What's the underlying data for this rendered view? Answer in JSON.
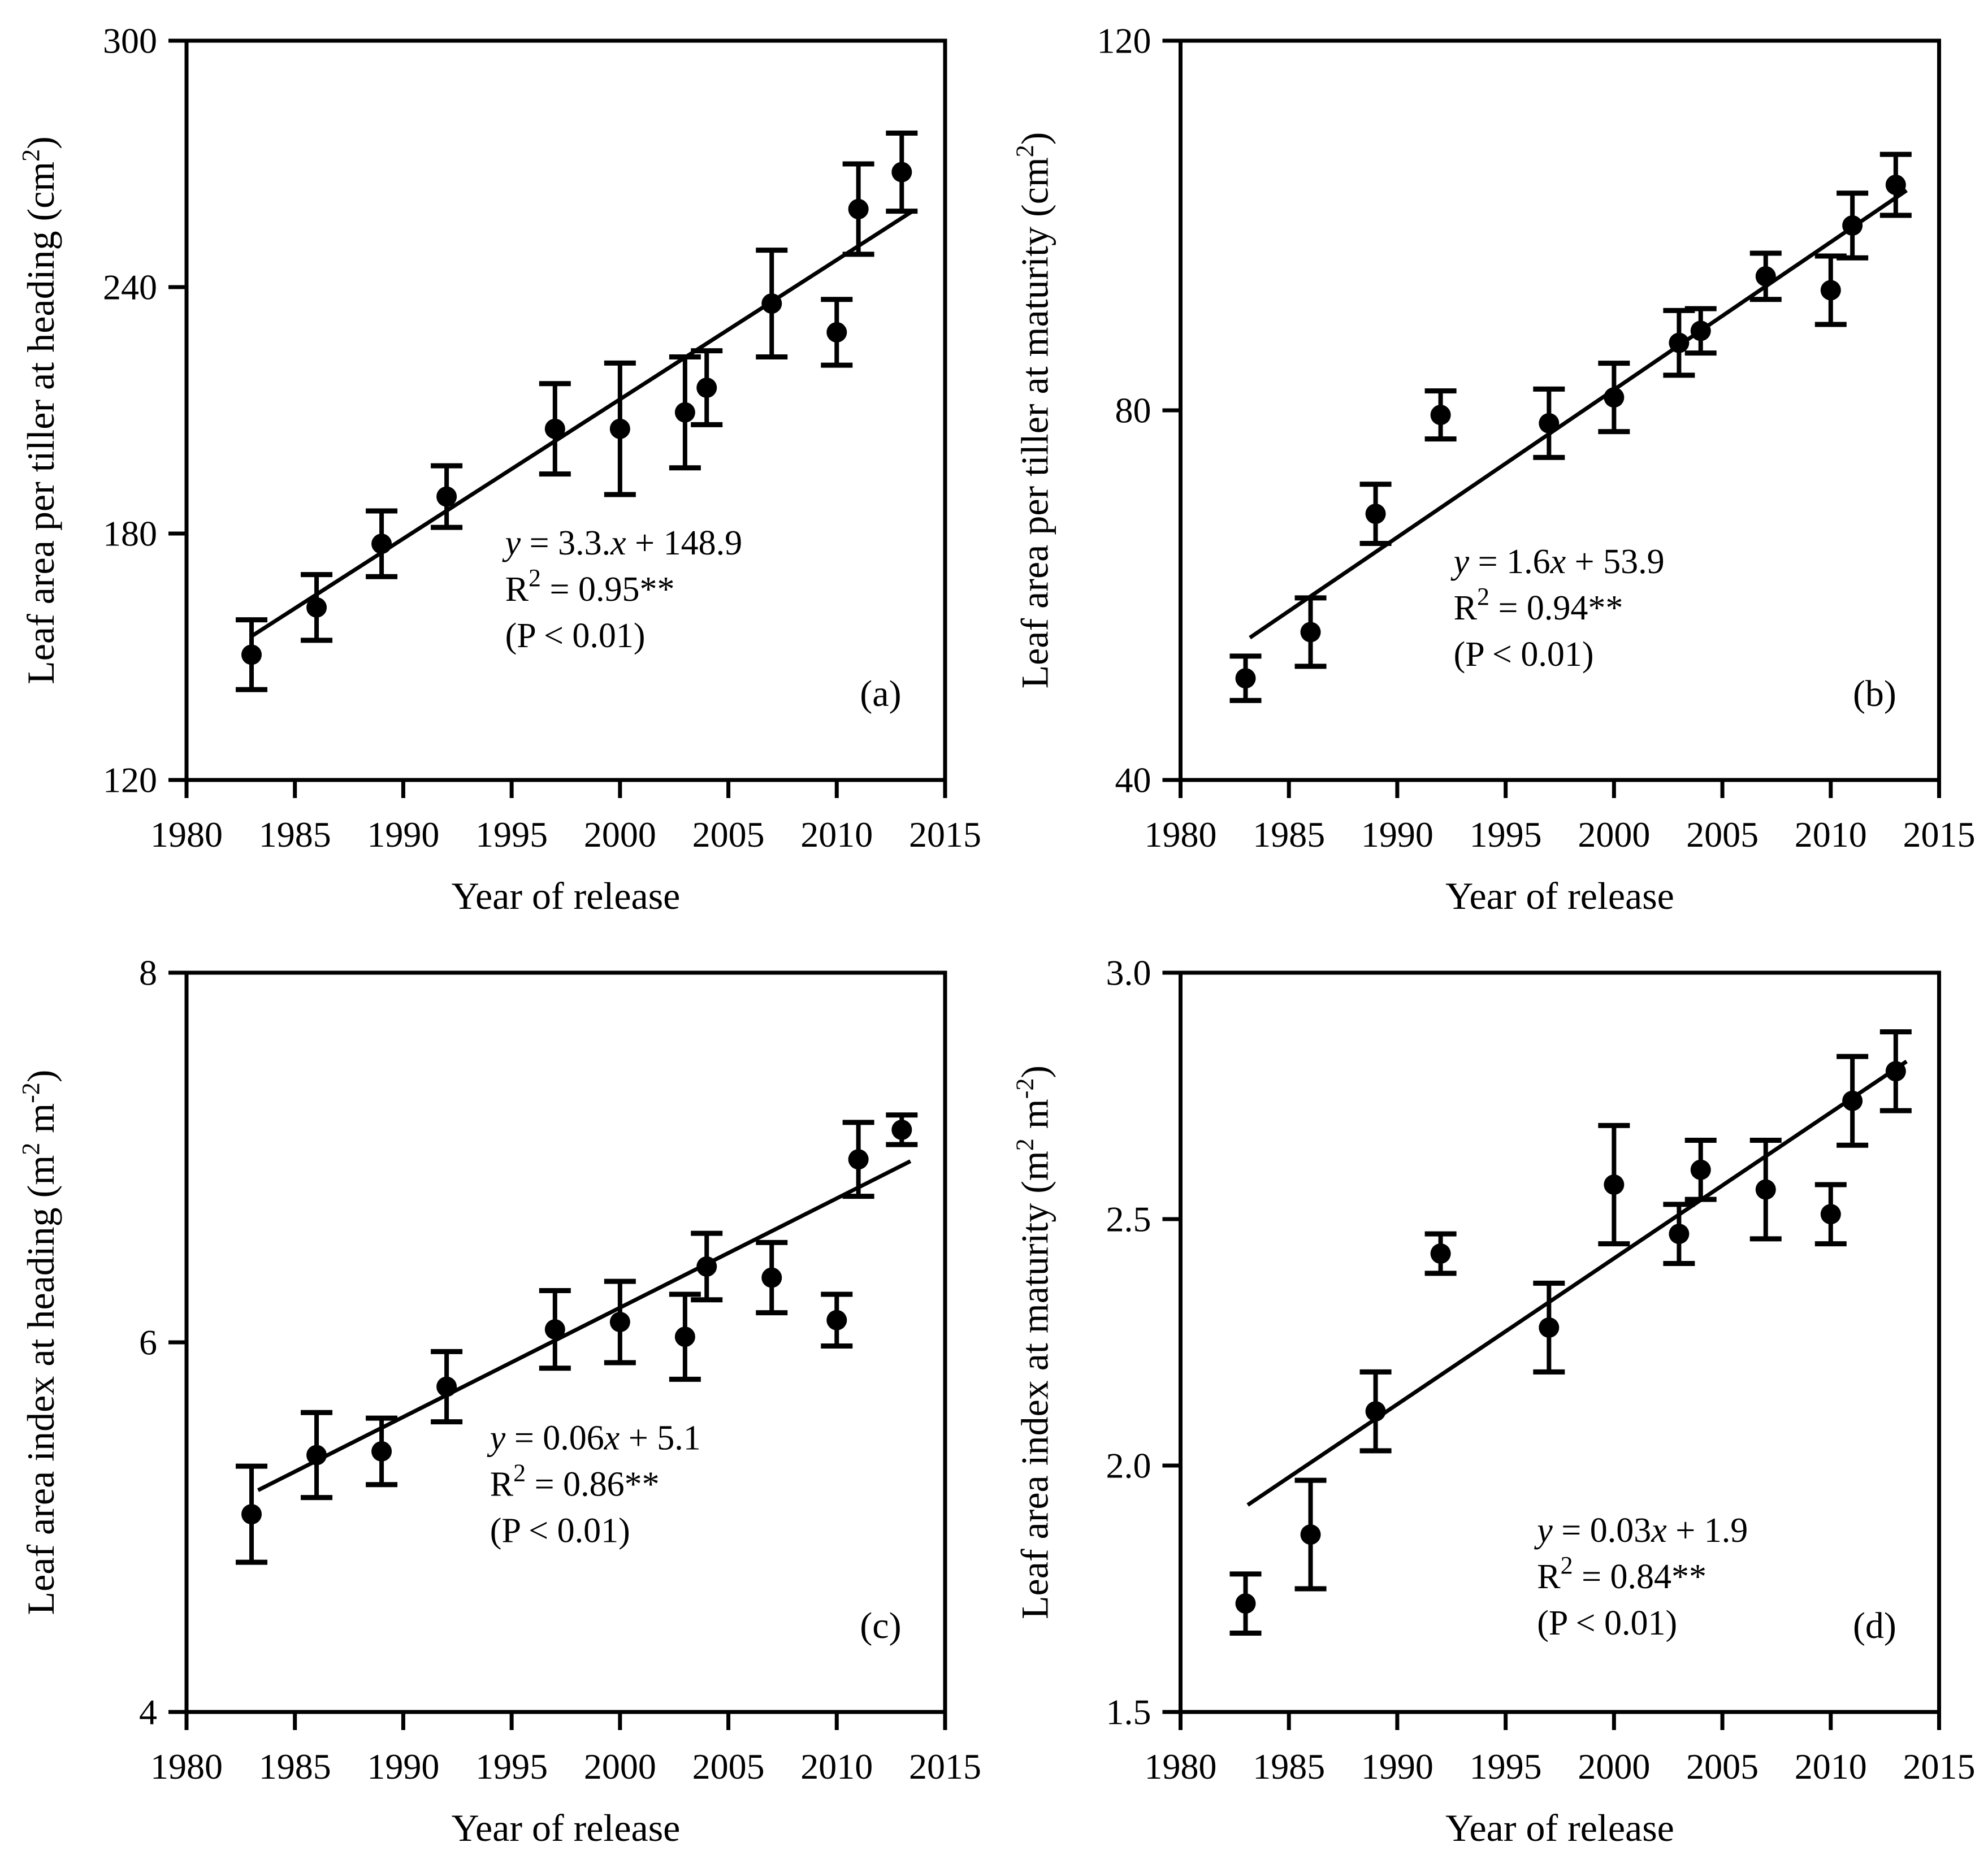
{
  "figure": {
    "background": "#ffffff",
    "ink_color": "#000000",
    "xlabel": "Year of release"
  },
  "chart_data": [
    {
      "type": "scatter",
      "panel_label": "(a)",
      "xlabel": "Year of release",
      "ylabel": "Leaf area per tiller at heading (cm2)",
      "ylabel_segments": [
        {
          "t": "Leaf area per tiller at heading (cm"
        },
        {
          "t": "2",
          "sup": true
        },
        {
          "t": ")"
        }
      ],
      "xlim": [
        1980,
        2015
      ],
      "ylim": [
        120,
        300
      ],
      "xticks": [
        {
          "v": 1980,
          "label": "1980"
        },
        {
          "v": 1985,
          "label": "1985"
        },
        {
          "v": 1990,
          "label": "1990"
        },
        {
          "v": 1995,
          "label": "1995"
        },
        {
          "v": 2000,
          "label": "2000"
        },
        {
          "v": 2005,
          "label": "2005"
        },
        {
          "v": 2010,
          "label": "2010"
        },
        {
          "v": 2015,
          "label": "2015"
        }
      ],
      "yticks": [
        {
          "v": 120,
          "label": "120"
        },
        {
          "v": 180,
          "label": "180"
        },
        {
          "v": 240,
          "label": "240"
        },
        {
          "v": 300,
          "label": "300"
        }
      ],
      "points": [
        {
          "x": 1983,
          "y": 150.5,
          "err": 8.5
        },
        {
          "x": 1986,
          "y": 162,
          "err": 8
        },
        {
          "x": 1989,
          "y": 177.5,
          "err": 8
        },
        {
          "x": 1992,
          "y": 189,
          "err": 7.5
        },
        {
          "x": 1997,
          "y": 205.5,
          "err": 11
        },
        {
          "x": 2000,
          "y": 205.5,
          "err": 16
        },
        {
          "x": 2003,
          "y": 209.5,
          "err": 13.5
        },
        {
          "x": 2004,
          "y": 215.5,
          "err": 9
        },
        {
          "x": 2007,
          "y": 236,
          "err": 13
        },
        {
          "x": 2010,
          "y": 229,
          "err": 8
        },
        {
          "x": 2011,
          "y": 259,
          "err": 11
        },
        {
          "x": 2013,
          "y": 268,
          "err": 9.5
        }
      ],
      "trend_line": {
        "x1": 1983,
        "y1": 155,
        "x2": 2013.5,
        "y2": 258.5
      },
      "equation_text": [
        "y = 3.3.x + 148.9",
        "R2 = 0.95**",
        "(P < 0.01)"
      ],
      "equation_lines": [
        [
          {
            "t": "y",
            "i": true
          },
          {
            "t": " = 3.3."
          },
          {
            "t": "x",
            "i": true
          },
          {
            "t": " + 148.9"
          }
        ],
        [
          {
            "t": "R"
          },
          {
            "t": "2",
            "sup": true
          },
          {
            "t": " = 0.95**"
          }
        ],
        [
          {
            "t": "(P < 0.01)"
          }
        ]
      ],
      "equation_pos": [
        0.42,
        0.695
      ]
    },
    {
      "type": "scatter",
      "panel_label": "(b)",
      "xlabel": "Year of release",
      "ylabel": "Leaf area per tiller at maturity (cm2)",
      "ylabel_segments": [
        {
          "t": "Leaf area per tiller at maturity (cm"
        },
        {
          "t": "2",
          "sup": true
        },
        {
          "t": ")"
        }
      ],
      "xlim": [
        1980,
        2015
      ],
      "ylim": [
        40,
        120
      ],
      "xticks": [
        {
          "v": 1980,
          "label": "1980"
        },
        {
          "v": 1985,
          "label": "1985"
        },
        {
          "v": 1990,
          "label": "1990"
        },
        {
          "v": 1995,
          "label": "1995"
        },
        {
          "v": 2000,
          "label": "2000"
        },
        {
          "v": 2005,
          "label": "2005"
        },
        {
          "v": 2010,
          "label": "2010"
        },
        {
          "v": 2015,
          "label": "2015"
        }
      ],
      "yticks": [
        {
          "v": 40,
          "label": "40"
        },
        {
          "v": 80,
          "label": "80"
        },
        {
          "v": 120,
          "label": "120"
        }
      ],
      "points": [
        {
          "x": 1983,
          "y": 51,
          "err": 2.4
        },
        {
          "x": 1986,
          "y": 56,
          "err": 3.7
        },
        {
          "x": 1989,
          "y": 68.8,
          "err": 3.2
        },
        {
          "x": 1992,
          "y": 79.5,
          "err": 2.6
        },
        {
          "x": 1997,
          "y": 78.6,
          "err": 3.7
        },
        {
          "x": 2000,
          "y": 81.4,
          "err": 3.7
        },
        {
          "x": 2003,
          "y": 87.3,
          "err": 3.5
        },
        {
          "x": 2004,
          "y": 88.6,
          "err": 2.4
        },
        {
          "x": 2007,
          "y": 94.5,
          "err": 2.5
        },
        {
          "x": 2010,
          "y": 93,
          "err": 3.7
        },
        {
          "x": 2011,
          "y": 100,
          "err": 3.5
        },
        {
          "x": 2013,
          "y": 104.4,
          "err": 3.3
        }
      ],
      "trend_line": {
        "x1": 1983.2,
        "y1": 55.4,
        "x2": 2013.5,
        "y2": 103.8
      },
      "equation_text": [
        "y = 1.6x + 53.9",
        "R2 = 0.94**",
        "(P < 0.01)"
      ],
      "equation_lines": [
        [
          {
            "t": "y",
            "i": true
          },
          {
            "t": " = 1.6"
          },
          {
            "t": "x",
            "i": true
          },
          {
            "t": " + 53.9"
          }
        ],
        [
          {
            "t": "R"
          },
          {
            "t": "2",
            "sup": true
          },
          {
            "t": " = 0.94**"
          }
        ],
        [
          {
            "t": "(P < 0.01)"
          }
        ]
      ],
      "equation_pos": [
        0.36,
        0.72
      ]
    },
    {
      "type": "scatter",
      "panel_label": "(c)",
      "xlabel": "Year of release",
      "ylabel": "Leaf area index at heading (m2 m-2)",
      "ylabel_segments": [
        {
          "t": "Leaf area index at heading (m"
        },
        {
          "t": "2",
          "sup": true
        },
        {
          "t": " m"
        },
        {
          "t": "-2",
          "sup": true
        },
        {
          "t": ")"
        }
      ],
      "xlim": [
        1980,
        2015
      ],
      "ylim": [
        4,
        8
      ],
      "xticks": [
        {
          "v": 1980,
          "label": "1980"
        },
        {
          "v": 1985,
          "label": "1985"
        },
        {
          "v": 1990,
          "label": "1990"
        },
        {
          "v": 1995,
          "label": "1995"
        },
        {
          "v": 2000,
          "label": "2000"
        },
        {
          "v": 2005,
          "label": "2005"
        },
        {
          "v": 2010,
          "label": "2010"
        },
        {
          "v": 2015,
          "label": "2015"
        }
      ],
      "yticks": [
        {
          "v": 4,
          "label": "4"
        },
        {
          "v": 6,
          "label": "6"
        },
        {
          "v": 8,
          "label": "8"
        }
      ],
      "points": [
        {
          "x": 1983,
          "y": 5.07,
          "err": 0.26
        },
        {
          "x": 1986,
          "y": 5.39,
          "err": 0.23
        },
        {
          "x": 1989,
          "y": 5.41,
          "err": 0.18
        },
        {
          "x": 1992,
          "y": 5.76,
          "err": 0.19
        },
        {
          "x": 1997,
          "y": 6.07,
          "err": 0.21
        },
        {
          "x": 2000,
          "y": 6.11,
          "err": 0.22
        },
        {
          "x": 2003,
          "y": 6.03,
          "err": 0.23
        },
        {
          "x": 2004,
          "y": 6.41,
          "err": 0.18
        },
        {
          "x": 2007,
          "y": 6.35,
          "err": 0.19
        },
        {
          "x": 2010,
          "y": 6.12,
          "err": 0.14
        },
        {
          "x": 2011,
          "y": 6.99,
          "err": 0.2
        },
        {
          "x": 2013,
          "y": 7.15,
          "err": 0.08
        }
      ],
      "trend_line": {
        "x1": 1983.3,
        "y1": 5.2,
        "x2": 2013.4,
        "y2": 6.98
      },
      "equation_text": [
        "y = 0.06x + 5.1",
        "R2 = 0.86**",
        "(P < 0.01)"
      ],
      "equation_lines": [
        [
          {
            "t": "y",
            "i": true
          },
          {
            "t": " = 0.06"
          },
          {
            "t": "x",
            "i": true
          },
          {
            "t": " + 5.1"
          }
        ],
        [
          {
            "t": "R"
          },
          {
            "t": "2",
            "sup": true
          },
          {
            "t": " = 0.86**"
          }
        ],
        [
          {
            "t": "(P < 0.01)"
          }
        ]
      ],
      "equation_pos": [
        0.4,
        0.645
      ]
    },
    {
      "type": "scatter",
      "panel_label": "(d)",
      "xlabel": "Year of release",
      "ylabel": "Leaf area index at maturity (m2 m-2)",
      "ylabel_segments": [
        {
          "t": "Leaf area index at maturity (m"
        },
        {
          "t": "2",
          "sup": true
        },
        {
          "t": " m"
        },
        {
          "t": "-2",
          "sup": true
        },
        {
          "t": ")"
        }
      ],
      "xlim": [
        1980,
        2015
      ],
      "ylim": [
        1.5,
        3.0
      ],
      "xticks": [
        {
          "v": 1980,
          "label": "1980"
        },
        {
          "v": 1985,
          "label": "1985"
        },
        {
          "v": 1990,
          "label": "1990"
        },
        {
          "v": 1995,
          "label": "1995"
        },
        {
          "v": 2000,
          "label": "2000"
        },
        {
          "v": 2005,
          "label": "2005"
        },
        {
          "v": 2010,
          "label": "2010"
        },
        {
          "v": 2015,
          "label": "2015"
        }
      ],
      "yticks": [
        {
          "v": 1.5,
          "label": "1.5"
        },
        {
          "v": 2.0,
          "label": "2.0"
        },
        {
          "v": 2.5,
          "label": "2.5"
        },
        {
          "v": 3.0,
          "label": "3.0"
        }
      ],
      "points": [
        {
          "x": 1983,
          "y": 1.72,
          "err": 0.06
        },
        {
          "x": 1986,
          "y": 1.86,
          "err": 0.11
        },
        {
          "x": 1989,
          "y": 2.11,
          "err": 0.08
        },
        {
          "x": 1992,
          "y": 2.43,
          "err": 0.04
        },
        {
          "x": 1997,
          "y": 2.28,
          "err": 0.09
        },
        {
          "x": 2000,
          "y": 2.57,
          "err": 0.12
        },
        {
          "x": 2003,
          "y": 2.47,
          "err": 0.06
        },
        {
          "x": 2004,
          "y": 2.6,
          "err": 0.06
        },
        {
          "x": 2007,
          "y": 2.56,
          "err": 0.1
        },
        {
          "x": 2010,
          "y": 2.51,
          "err": 0.06
        },
        {
          "x": 2011,
          "y": 2.74,
          "err": 0.09
        },
        {
          "x": 2013,
          "y": 2.8,
          "err": 0.08
        }
      ],
      "trend_line": {
        "x1": 1983.1,
        "y1": 1.92,
        "x2": 2013.5,
        "y2": 2.82
      },
      "equation_text": [
        "y = 0.03x + 1.9",
        "R2 = 0.84**",
        "(P < 0.01)"
      ],
      "equation_lines": [
        [
          {
            "t": "y",
            "i": true
          },
          {
            "t": " = 0.03"
          },
          {
            "t": "x",
            "i": true
          },
          {
            "t": " + 1.9"
          }
        ],
        [
          {
            "t": "R"
          },
          {
            "t": "2",
            "sup": true
          },
          {
            "t": " = 0.84**"
          }
        ],
        [
          {
            "t": "(P < 0.01)"
          }
        ]
      ],
      "equation_pos": [
        0.47,
        0.77
      ]
    }
  ]
}
